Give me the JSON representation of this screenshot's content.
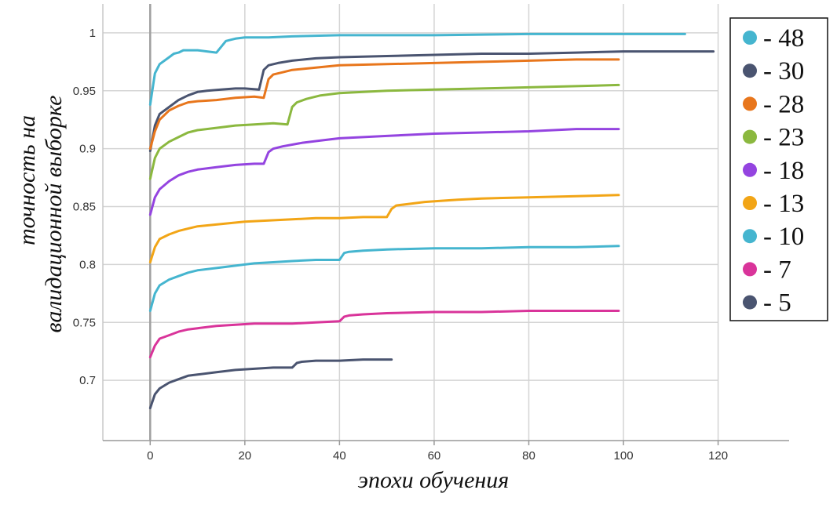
{
  "chart_data": {
    "type": "line",
    "title": "",
    "xlabel": "эпохи обучения",
    "ylabel_line1": "точность на",
    "ylabel_line2": "валидационной выборке",
    "xlim": [
      -10,
      135
    ],
    "ylim": [
      0.648,
      1.025
    ],
    "grid": true,
    "legend_placement": "right",
    "x_ticks": [
      0,
      20,
      40,
      60,
      80,
      100,
      120
    ],
    "x_tick_labels": [
      "0",
      "20",
      "40",
      "60",
      "80",
      "100",
      "120"
    ],
    "y_ticks": [
      0.7,
      0.75,
      0.8,
      0.85,
      0.9,
      0.95,
      1
    ],
    "y_tick_labels": [
      "0.7",
      "0.75",
      "0.8",
      "0.85",
      "0.9",
      "0.95",
      "1"
    ],
    "series": [
      {
        "name": "- 48",
        "color": "#45B5CF",
        "x": [
          0,
          1,
          2,
          3,
          4,
          5,
          6,
          7,
          8,
          10,
          12,
          14,
          15,
          16,
          17,
          18,
          20,
          25,
          30,
          40,
          60,
          80,
          100,
          113
        ],
        "y": [
          0.938,
          0.965,
          0.973,
          0.976,
          0.979,
          0.982,
          0.983,
          0.985,
          0.985,
          0.985,
          0.984,
          0.983,
          0.988,
          0.993,
          0.994,
          0.995,
          0.996,
          0.996,
          0.997,
          0.998,
          0.998,
          0.999,
          0.999,
          0.999
        ]
      },
      {
        "name": "- 30",
        "color": "#4A5470",
        "x": [
          0,
          1,
          2,
          4,
          6,
          8,
          10,
          12,
          15,
          18,
          20,
          23,
          24,
          25,
          27,
          30,
          35,
          40,
          50,
          60,
          70,
          80,
          90,
          100,
          110,
          119
        ],
        "y": [
          0.898,
          0.92,
          0.93,
          0.936,
          0.942,
          0.946,
          0.949,
          0.95,
          0.951,
          0.952,
          0.952,
          0.951,
          0.968,
          0.972,
          0.974,
          0.976,
          0.978,
          0.979,
          0.98,
          0.981,
          0.982,
          0.982,
          0.983,
          0.984,
          0.984,
          0.984
        ]
      },
      {
        "name": "- 28",
        "color": "#E8761C",
        "x": [
          0,
          1,
          2,
          4,
          6,
          8,
          10,
          14,
          18,
          22,
          24,
          25,
          26,
          28,
          30,
          35,
          40,
          50,
          60,
          70,
          80,
          90,
          99
        ],
        "y": [
          0.9,
          0.915,
          0.925,
          0.933,
          0.937,
          0.94,
          0.941,
          0.942,
          0.944,
          0.945,
          0.944,
          0.96,
          0.964,
          0.966,
          0.968,
          0.97,
          0.972,
          0.973,
          0.974,
          0.975,
          0.976,
          0.977,
          0.977
        ]
      },
      {
        "name": "- 23",
        "color": "#8BB83F",
        "x": [
          0,
          1,
          2,
          4,
          6,
          8,
          10,
          14,
          18,
          22,
          26,
          29,
          30,
          31,
          33,
          36,
          40,
          45,
          50,
          60,
          70,
          80,
          90,
          99
        ],
        "y": [
          0.874,
          0.892,
          0.9,
          0.906,
          0.91,
          0.914,
          0.916,
          0.918,
          0.92,
          0.921,
          0.922,
          0.921,
          0.936,
          0.94,
          0.943,
          0.946,
          0.948,
          0.949,
          0.95,
          0.951,
          0.952,
          0.953,
          0.954,
          0.955
        ]
      },
      {
        "name": "- 18",
        "color": "#9444E0",
        "x": [
          0,
          1,
          2,
          4,
          6,
          8,
          10,
          14,
          18,
          22,
          24,
          25,
          26,
          28,
          32,
          36,
          40,
          50,
          60,
          70,
          80,
          90,
          99
        ],
        "y": [
          0.843,
          0.858,
          0.865,
          0.872,
          0.877,
          0.88,
          0.882,
          0.884,
          0.886,
          0.887,
          0.887,
          0.897,
          0.9,
          0.902,
          0.905,
          0.907,
          0.909,
          0.911,
          0.913,
          0.914,
          0.915,
          0.917,
          0.917
        ]
      },
      {
        "name": "- 13",
        "color": "#F2A516",
        "x": [
          0,
          1,
          2,
          4,
          6,
          8,
          10,
          15,
          20,
          25,
          30,
          35,
          40,
          45,
          50,
          51,
          52,
          54,
          58,
          65,
          70,
          80,
          90,
          99
        ],
        "y": [
          0.802,
          0.815,
          0.822,
          0.826,
          0.829,
          0.831,
          0.833,
          0.835,
          0.837,
          0.838,
          0.839,
          0.84,
          0.84,
          0.841,
          0.841,
          0.848,
          0.851,
          0.852,
          0.854,
          0.856,
          0.857,
          0.858,
          0.859,
          0.86
        ]
      },
      {
        "name": "- 10",
        "color": "#45B5CF",
        "x": [
          0,
          1,
          2,
          4,
          6,
          8,
          10,
          14,
          18,
          22,
          26,
          30,
          35,
          40,
          41,
          42,
          45,
          50,
          60,
          70,
          80,
          90,
          99
        ],
        "y": [
          0.76,
          0.775,
          0.782,
          0.787,
          0.79,
          0.793,
          0.795,
          0.797,
          0.799,
          0.801,
          0.802,
          0.803,
          0.804,
          0.804,
          0.81,
          0.811,
          0.812,
          0.813,
          0.814,
          0.814,
          0.815,
          0.815,
          0.816
        ]
      },
      {
        "name": "- 7",
        "color": "#D9349A",
        "x": [
          0,
          1,
          2,
          4,
          6,
          8,
          10,
          14,
          18,
          22,
          26,
          30,
          35,
          40,
          41,
          42,
          45,
          50,
          60,
          70,
          80,
          90,
          99
        ],
        "y": [
          0.72,
          0.73,
          0.736,
          0.739,
          0.742,
          0.744,
          0.745,
          0.747,
          0.748,
          0.749,
          0.749,
          0.749,
          0.75,
          0.751,
          0.755,
          0.756,
          0.757,
          0.758,
          0.759,
          0.759,
          0.76,
          0.76,
          0.76
        ]
      },
      {
        "name": "- 5",
        "color": "#4A5470",
        "x": [
          0,
          1,
          2,
          4,
          6,
          8,
          10,
          14,
          18,
          22,
          26,
          30,
          31,
          32,
          35,
          40,
          45,
          51
        ],
        "y": [
          0.676,
          0.688,
          0.693,
          0.698,
          0.701,
          0.704,
          0.705,
          0.707,
          0.709,
          0.71,
          0.711,
          0.711,
          0.715,
          0.716,
          0.717,
          0.717,
          0.718,
          0.718
        ]
      }
    ]
  }
}
